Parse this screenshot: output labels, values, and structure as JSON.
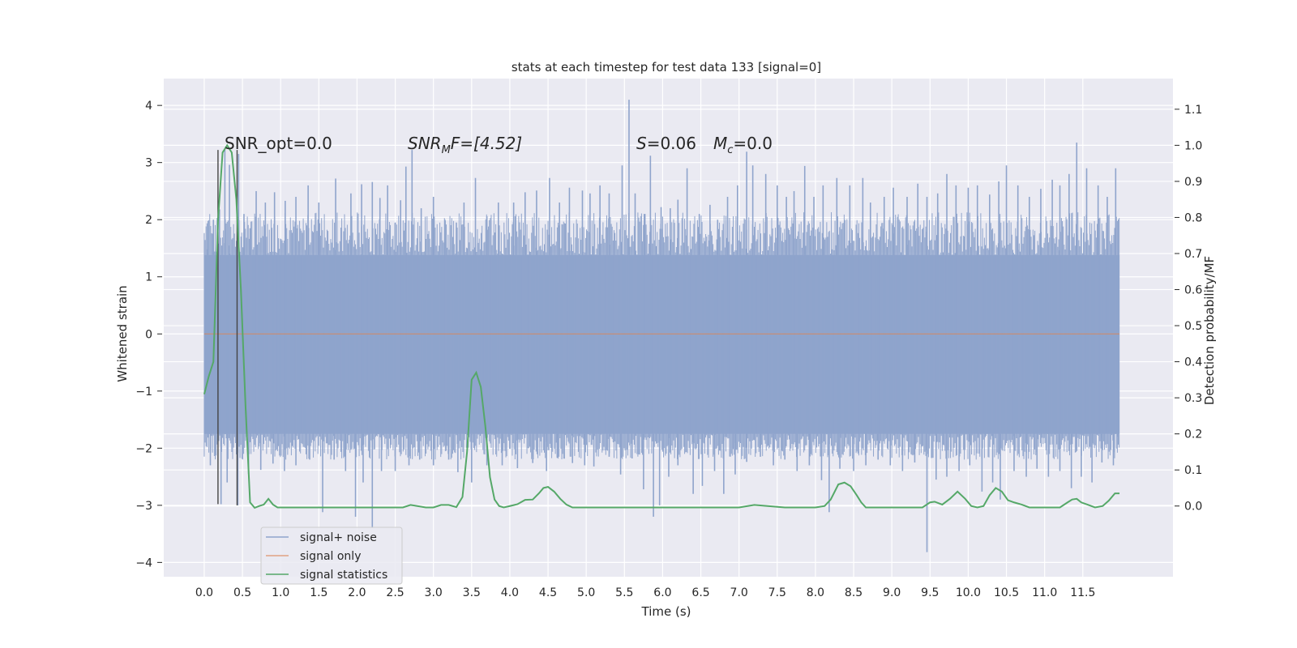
{
  "chart_data": {
    "type": "line",
    "title": "stats at each timestep for test data 133 [signal=0]",
    "xlabel": "Time (s)",
    "ylabel_left": "Whitened strain",
    "ylabel_right": "Detection probability/MF",
    "xlim": [
      -0.53,
      12.68
    ],
    "ylim_left": [
      -4.25,
      4.47
    ],
    "ylim_right": [
      -0.196,
      1.185
    ],
    "x_ticks": [
      "0.0",
      "0.5",
      "1.0",
      "1.5",
      "2.0",
      "2.5",
      "3.0",
      "3.5",
      "4.0",
      "4.5",
      "5.0",
      "5.5",
      "6.0",
      "6.5",
      "7.0",
      "7.5",
      "8.0",
      "8.5",
      "9.0",
      "9.5",
      "10.0",
      "10.5",
      "11.0",
      "11.5"
    ],
    "y_ticks_left": [
      "4",
      "3",
      "2",
      "1",
      "0",
      "−1",
      "−2",
      "−3",
      "−4"
    ],
    "y_ticks_right": [
      "1.1",
      "1.0",
      "0.9",
      "0.8",
      "0.7",
      "0.6",
      "0.5",
      "0.4",
      "0.3",
      "0.2",
      "0.1",
      "0.0"
    ],
    "grid": true,
    "legend_position": "lower-left",
    "annotations": {
      "snr_opt": "SNR_opt=0.0",
      "snr_mf_main": "SNR",
      "snr_mf_sub": "M",
      "snr_mf_rest": "F=[4.52]",
      "s_main": "S",
      "s_rest": "=0.06",
      "mc_main": "M",
      "mc_sub": "c",
      "mc_rest": "=0.0"
    },
    "series": [
      {
        "name": "signal+ noise",
        "color": "#8fa4cc",
        "axis": "left",
        "x_range": [
          0.0,
          11.98
        ],
        "envelope_upper": 1.38,
        "envelope_lower": -1.75,
        "spikes": [
          [
            0.04,
            1.48
          ],
          [
            0.12,
            2.0
          ],
          [
            0.2,
            2.18
          ],
          [
            0.27,
            3.22
          ],
          [
            0.33,
            2.96
          ],
          [
            0.45,
            3.15
          ],
          [
            0.52,
            2.1
          ],
          [
            0.6,
            1.85
          ],
          [
            0.68,
            2.5
          ],
          [
            0.8,
            2.3
          ],
          [
            0.92,
            2.48
          ],
          [
            1.06,
            2.33
          ],
          [
            1.2,
            2.4
          ],
          [
            1.36,
            2.6
          ],
          [
            1.5,
            2.3
          ],
          [
            1.72,
            2.72
          ],
          [
            1.92,
            2.46
          ],
          [
            2.06,
            2.62
          ],
          [
            2.2,
            2.66
          ],
          [
            2.3,
            2.38
          ],
          [
            2.4,
            2.6
          ],
          [
            2.5,
            1.95
          ],
          [
            2.57,
            2.34
          ],
          [
            2.64,
            2.93
          ],
          [
            2.72,
            3.22
          ],
          [
            2.84,
            2.2
          ],
          [
            3.0,
            2.4
          ],
          [
            3.15,
            2.0
          ],
          [
            3.3,
            1.95
          ],
          [
            3.4,
            2.3
          ],
          [
            3.55,
            2.73
          ],
          [
            3.7,
            2.06
          ],
          [
            3.85,
            2.3
          ],
          [
            4.05,
            2.3
          ],
          [
            4.2,
            2.48
          ],
          [
            4.35,
            2.51
          ],
          [
            4.52,
            2.73
          ],
          [
            4.65,
            2.3
          ],
          [
            4.78,
            2.56
          ],
          [
            4.95,
            2.51
          ],
          [
            5.05,
            2.46
          ],
          [
            5.18,
            2.6
          ],
          [
            5.3,
            2.46
          ],
          [
            5.47,
            2.95
          ],
          [
            5.56,
            4.1
          ],
          [
            5.64,
            2.46
          ],
          [
            5.76,
            2.1
          ],
          [
            5.84,
            3.12
          ],
          [
            5.98,
            2.22
          ],
          [
            6.1,
            2.2
          ],
          [
            6.2,
            2.35
          ],
          [
            6.32,
            2.9
          ],
          [
            6.48,
            2.1
          ],
          [
            6.62,
            2.26
          ],
          [
            6.72,
            2.0
          ],
          [
            6.85,
            2.4
          ],
          [
            6.98,
            2.6
          ],
          [
            7.1,
            3.19
          ],
          [
            7.18,
            2.95
          ],
          [
            7.35,
            2.8
          ],
          [
            7.5,
            2.6
          ],
          [
            7.62,
            2.4
          ],
          [
            7.72,
            2.5
          ],
          [
            7.86,
            2.94
          ],
          [
            7.98,
            2.4
          ],
          [
            8.1,
            2.6
          ],
          [
            8.28,
            2.73
          ],
          [
            8.45,
            2.6
          ],
          [
            8.62,
            2.73
          ],
          [
            8.72,
            2.3
          ],
          [
            8.9,
            2.4
          ],
          [
            9.02,
            2.56
          ],
          [
            9.2,
            2.4
          ],
          [
            9.34,
            2.63
          ],
          [
            9.46,
            2.4
          ],
          [
            9.6,
            2.46
          ],
          [
            9.72,
            2.8
          ],
          [
            9.84,
            2.6
          ],
          [
            10.0,
            2.56
          ],
          [
            10.12,
            2.6
          ],
          [
            10.28,
            2.44
          ],
          [
            10.4,
            2.67
          ],
          [
            10.5,
            2.95
          ],
          [
            10.65,
            2.6
          ],
          [
            10.8,
            2.4
          ],
          [
            10.95,
            2.54
          ],
          [
            11.1,
            2.7
          ],
          [
            11.2,
            2.6
          ],
          [
            11.32,
            2.8
          ],
          [
            11.42,
            3.35
          ],
          [
            11.55,
            2.9
          ],
          [
            11.7,
            2.6
          ],
          [
            11.82,
            2.4
          ],
          [
            11.93,
            2.9
          ]
        ],
        "dips": [
          [
            0.08,
            -2.3
          ],
          [
            0.22,
            -2.98
          ],
          [
            0.3,
            -2.6
          ],
          [
            0.44,
            -3.0
          ],
          [
            0.58,
            -2.45
          ],
          [
            0.74,
            -2.38
          ],
          [
            0.9,
            -2.27
          ],
          [
            1.05,
            -2.4
          ],
          [
            1.2,
            -2.3
          ],
          [
            1.38,
            -2.2
          ],
          [
            1.55,
            -3.12
          ],
          [
            1.7,
            -2.2
          ],
          [
            1.85,
            -2.4
          ],
          [
            1.98,
            -3.2
          ],
          [
            2.08,
            -2.6
          ],
          [
            2.2,
            -3.4
          ],
          [
            2.32,
            -2.4
          ],
          [
            2.5,
            -2.4
          ],
          [
            2.68,
            -2.3
          ],
          [
            2.82,
            -2.2
          ],
          [
            3.0,
            -2.3
          ],
          [
            3.2,
            -2.2
          ],
          [
            3.32,
            -2.42
          ],
          [
            3.5,
            -2.6
          ],
          [
            3.7,
            -2.3
          ],
          [
            3.9,
            -2.3
          ],
          [
            4.1,
            -2.35
          ],
          [
            4.3,
            -2.26
          ],
          [
            4.48,
            -2.4
          ],
          [
            4.62,
            -2.17
          ],
          [
            4.82,
            -2.26
          ],
          [
            4.98,
            -2.3
          ],
          [
            5.1,
            -2.32
          ],
          [
            5.3,
            -2.15
          ],
          [
            5.45,
            -2.46
          ],
          [
            5.6,
            -2.18
          ],
          [
            5.75,
            -2.72
          ],
          [
            5.88,
            -3.2
          ],
          [
            5.96,
            -3.0
          ],
          [
            6.08,
            -2.5
          ],
          [
            6.2,
            -2.3
          ],
          [
            6.4,
            -2.8
          ],
          [
            6.52,
            -2.66
          ],
          [
            6.68,
            -2.4
          ],
          [
            6.8,
            -2.8
          ],
          [
            6.95,
            -2.46
          ],
          [
            7.1,
            -2.24
          ],
          [
            7.28,
            -2.15
          ],
          [
            7.45,
            -2.3
          ],
          [
            7.6,
            -2.2
          ],
          [
            7.76,
            -2.4
          ],
          [
            7.92,
            -2.3
          ],
          [
            8.08,
            -2.56
          ],
          [
            8.18,
            -3.12
          ],
          [
            8.32,
            -2.36
          ],
          [
            8.5,
            -2.4
          ],
          [
            8.66,
            -2.3
          ],
          [
            8.82,
            -2.2
          ],
          [
            8.98,
            -2.3
          ],
          [
            9.14,
            -2.4
          ],
          [
            9.3,
            -2.25
          ],
          [
            9.46,
            -3.82
          ],
          [
            9.58,
            -2.55
          ],
          [
            9.72,
            -2.5
          ],
          [
            9.88,
            -2.4
          ],
          [
            10.02,
            -2.3
          ],
          [
            10.18,
            -2.76
          ],
          [
            10.32,
            -2.6
          ],
          [
            10.42,
            -2.9
          ],
          [
            10.6,
            -2.4
          ],
          [
            10.76,
            -2.5
          ],
          [
            10.9,
            -2.36
          ],
          [
            11.05,
            -2.5
          ],
          [
            11.2,
            -2.4
          ],
          [
            11.35,
            -2.7
          ],
          [
            11.48,
            -2.5
          ],
          [
            11.62,
            -2.6
          ],
          [
            11.75,
            -2.25
          ],
          [
            11.9,
            -2.3
          ],
          [
            11.96,
            -1.8
          ]
        ]
      },
      {
        "name": "signal only",
        "color": "#dd8452",
        "axis": "left",
        "x": [
          0.0,
          11.98
        ],
        "y": [
          0.0,
          0.0
        ]
      },
      {
        "name": "signal statistics",
        "color": "#55a868",
        "axis": "right",
        "x": [
          0.0,
          0.06,
          0.12,
          0.18,
          0.24,
          0.3,
          0.36,
          0.42,
          0.48,
          0.54,
          0.6,
          0.66,
          0.72,
          0.78,
          0.84,
          0.9,
          0.96,
          1.1,
          1.4,
          1.8,
          2.2,
          2.4,
          2.6,
          2.7,
          2.9,
          3.0,
          3.1,
          3.2,
          3.3,
          3.38,
          3.44,
          3.5,
          3.56,
          3.62,
          3.68,
          3.74,
          3.8,
          3.86,
          3.92,
          4.0,
          4.1,
          4.2,
          4.3,
          4.38,
          4.44,
          4.5,
          4.58,
          4.66,
          4.74,
          4.82,
          4.92,
          5.1,
          5.4,
          5.8,
          6.2,
          6.6,
          7.0,
          7.2,
          7.6,
          8.0,
          8.12,
          8.2,
          8.3,
          8.38,
          8.46,
          8.54,
          8.6,
          8.66,
          8.8,
          9.1,
          9.4,
          9.5,
          9.56,
          9.66,
          9.76,
          9.86,
          9.96,
          10.04,
          10.12,
          10.2,
          10.28,
          10.36,
          10.44,
          10.52,
          10.6,
          10.7,
          10.8,
          10.9,
          11.0,
          11.2,
          11.3,
          11.36,
          11.42,
          11.48,
          11.56,
          11.66,
          11.76,
          11.84,
          11.92,
          11.98
        ],
        "y": [
          0.31,
          0.36,
          0.4,
          0.79,
          0.98,
          1.0,
          0.98,
          0.85,
          0.6,
          0.28,
          0.01,
          -0.005,
          0.0,
          0.004,
          0.02,
          0.004,
          -0.004,
          -0.004,
          -0.004,
          -0.004,
          -0.004,
          -0.004,
          -0.004,
          0.003,
          -0.004,
          -0.004,
          0.003,
          0.003,
          -0.003,
          0.025,
          0.15,
          0.35,
          0.37,
          0.33,
          0.22,
          0.08,
          0.018,
          0.0,
          -0.004,
          0.0,
          0.005,
          0.017,
          0.018,
          0.035,
          0.05,
          0.053,
          0.04,
          0.02,
          0.004,
          -0.004,
          -0.004,
          -0.004,
          -0.004,
          -0.004,
          -0.004,
          -0.004,
          -0.004,
          0.003,
          -0.004,
          -0.004,
          0.0,
          0.018,
          0.06,
          0.065,
          0.055,
          0.03,
          0.01,
          -0.004,
          -0.004,
          -0.004,
          -0.004,
          0.01,
          0.012,
          0.004,
          0.02,
          0.04,
          0.02,
          0.0,
          -0.004,
          0.0,
          0.03,
          0.05,
          0.04,
          0.016,
          0.01,
          0.004,
          -0.004,
          -0.004,
          -0.004,
          -0.004,
          0.01,
          0.018,
          0.02,
          0.01,
          0.004,
          -0.004,
          0.0,
          0.015,
          0.035,
          0.035
        ]
      }
    ],
    "vertical_markers_left": [
      [
        0.18,
        -2.98,
        3.22
      ],
      [
        0.43,
        -3.0,
        3.22
      ]
    ]
  }
}
